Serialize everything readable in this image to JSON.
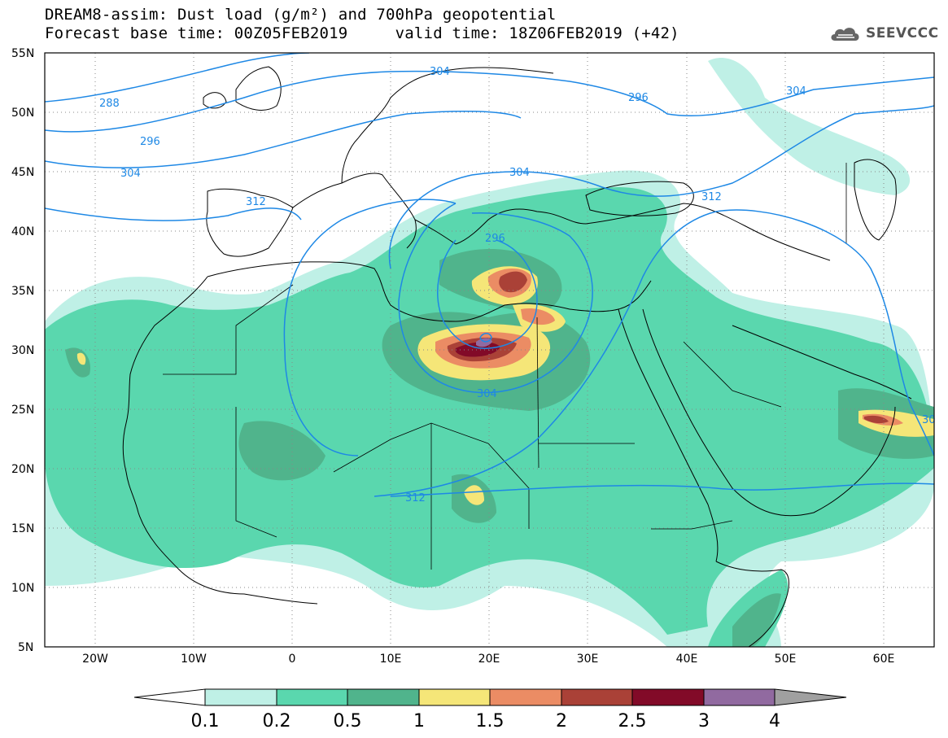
{
  "title": {
    "line1": "DREAM8-assim: Dust load (g/m²) and 700hPa geopotential",
    "line2": "Forecast base time: 00Z05FEB2019     valid time: 18Z06FEB2019 (+42)"
  },
  "logo": {
    "text": "SEEVCCC",
    "icon": "cloud-icon"
  },
  "axes": {
    "lat_labels": [
      "55N",
      "50N",
      "45N",
      "40N",
      "35N",
      "30N",
      "25N",
      "20N",
      "15N",
      "10N",
      "5N"
    ],
    "lon_labels": [
      "20W",
      "10W",
      "0",
      "10E",
      "20E",
      "30E",
      "40E",
      "50E",
      "60E"
    ]
  },
  "contours": {
    "labels": [
      "288",
      "296",
      "304",
      "312",
      "304",
      "296",
      "304",
      "312",
      "304",
      "296",
      "304",
      "312",
      "30"
    ]
  },
  "colorbar": {
    "colors": [
      "#bff0e6",
      "#5ad7ae",
      "#50b48c",
      "#f5e678",
      "#eb8c64",
      "#aa4137",
      "#820a28",
      "#916aa0",
      "#a0a0a0"
    ],
    "tick_labels": [
      "0.1",
      "0.2",
      "0.5",
      "1",
      "1.5",
      "2",
      "2.5",
      "3",
      "4"
    ]
  },
  "colors": {
    "contour": "#1e88e5",
    "border": "#000000",
    "frame": "#000000"
  }
}
